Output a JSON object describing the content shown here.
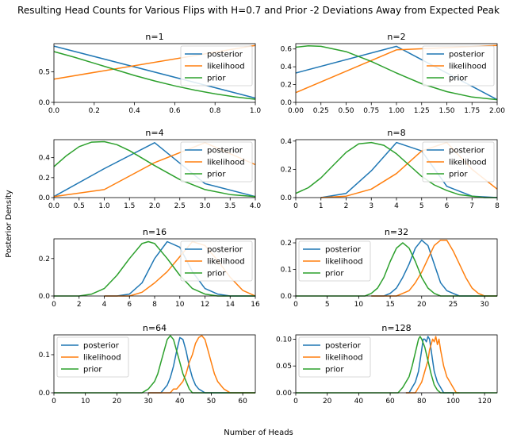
{
  "figure": {
    "suptitle": "Resulting Head Counts for Various Flips with H=0.7 and Prior -2 Deviations Away from Expected Peak",
    "supxlabel": "Number of Heads",
    "supylabel": "Posterior Density"
  },
  "colors": {
    "posterior": "#1f77b4",
    "likelihood": "#ff7f0e",
    "prior": "#2ca02c"
  },
  "chart_data": [
    {
      "type": "line",
      "title": "n=1",
      "xlim": [
        0,
        1
      ],
      "ylim": [
        0,
        0.96
      ],
      "xticks": [
        "0.0",
        "0.2",
        "0.4",
        "0.6",
        "0.8",
        "1.0"
      ],
      "yticks": [
        "0.0",
        "0.5"
      ],
      "xtick_values": [
        0,
        0.2,
        0.4,
        0.6,
        0.8,
        1.0
      ],
      "ytick_values": [
        0,
        0.5
      ],
      "legend": "upper right",
      "series": [
        {
          "name": "posterior",
          "x": [
            0,
            1
          ],
          "y": [
            0.92,
            0.07
          ]
        },
        {
          "name": "likelihood",
          "x": [
            0,
            1
          ],
          "y": [
            0.38,
            0.93
          ]
        },
        {
          "name": "prior",
          "x": [
            0,
            0.1,
            0.2,
            0.3,
            0.4,
            0.5,
            0.6,
            0.7,
            0.8,
            0.9,
            1.0
          ],
          "y": [
            0.83,
            0.74,
            0.64,
            0.54,
            0.44,
            0.35,
            0.27,
            0.2,
            0.14,
            0.09,
            0.05
          ]
        }
      ]
    },
    {
      "type": "line",
      "title": "n=2",
      "xlim": [
        0,
        2
      ],
      "ylim": [
        0,
        0.66
      ],
      "xticks": [
        "0.00",
        "0.25",
        "0.50",
        "0.75",
        "1.00",
        "1.25",
        "1.50",
        "1.75",
        "2.00"
      ],
      "yticks": [
        "0.0",
        "0.2",
        "0.4",
        "0.6"
      ],
      "xtick_values": [
        0,
        0.25,
        0.5,
        0.75,
        1.0,
        1.25,
        1.5,
        1.75,
        2.0
      ],
      "ytick_values": [
        0,
        0.2,
        0.4,
        0.6
      ],
      "legend": "upper right",
      "series": [
        {
          "name": "posterior",
          "x": [
            0,
            1,
            2
          ],
          "y": [
            0.33,
            0.63,
            0.03
          ]
        },
        {
          "name": "likelihood",
          "x": [
            0,
            1,
            2
          ],
          "y": [
            0.11,
            0.59,
            0.64
          ]
        },
        {
          "name": "prior",
          "x": [
            0,
            0.125,
            0.25,
            0.5,
            0.75,
            1.0,
            1.25,
            1.5,
            1.75,
            2.0
          ],
          "y": [
            0.62,
            0.635,
            0.63,
            0.57,
            0.46,
            0.33,
            0.21,
            0.12,
            0.06,
            0.03
          ]
        }
      ]
    },
    {
      "type": "line",
      "title": "n=4",
      "xlim": [
        0,
        4
      ],
      "ylim": [
        0,
        0.58
      ],
      "xticks": [
        "0.0",
        "0.5",
        "1.0",
        "1.5",
        "2.0",
        "2.5",
        "3.0",
        "3.5",
        "4.0"
      ],
      "yticks": [
        "0.0",
        "0.2",
        "0.4"
      ],
      "xtick_values": [
        0,
        0.5,
        1,
        1.5,
        2,
        2.5,
        3,
        3.5,
        4
      ],
      "ytick_values": [
        0,
        0.2,
        0.4
      ],
      "legend": "upper right",
      "series": [
        {
          "name": "posterior",
          "x": [
            0,
            1,
            2,
            3,
            4
          ],
          "y": [
            0.01,
            0.29,
            0.55,
            0.14,
            0.01
          ]
        },
        {
          "name": "likelihood",
          "x": [
            0,
            1,
            2,
            3,
            4
          ],
          "y": [
            0.01,
            0.08,
            0.35,
            0.55,
            0.33
          ]
        },
        {
          "name": "prior",
          "x": [
            0,
            0.25,
            0.5,
            0.75,
            1.0,
            1.25,
            1.5,
            2.0,
            2.5,
            3.0,
            3.5,
            4.0
          ],
          "y": [
            0.31,
            0.42,
            0.51,
            0.555,
            0.56,
            0.53,
            0.47,
            0.32,
            0.18,
            0.08,
            0.03,
            0.01
          ]
        }
      ]
    },
    {
      "type": "line",
      "title": "n=8",
      "xlim": [
        0,
        8
      ],
      "ylim": [
        0,
        0.41
      ],
      "xticks": [
        "0",
        "1",
        "2",
        "3",
        "4",
        "5",
        "6",
        "7",
        "8"
      ],
      "yticks": [
        "0.0",
        "0.2",
        "0.4"
      ],
      "xtick_values": [
        0,
        1,
        2,
        3,
        4,
        5,
        6,
        7,
        8
      ],
      "ytick_values": [
        0,
        0.2,
        0.4
      ],
      "legend": "upper right",
      "series": [
        {
          "name": "posterior",
          "x": [
            1,
            2,
            3,
            4,
            5,
            6,
            7,
            8
          ],
          "y": [
            0.0,
            0.03,
            0.19,
            0.39,
            0.33,
            0.08,
            0.01,
            0.0
          ]
        },
        {
          "name": "likelihood",
          "x": [
            1,
            2,
            3,
            4,
            5,
            6,
            7,
            8
          ],
          "y": [
            0.0,
            0.01,
            0.06,
            0.17,
            0.33,
            0.39,
            0.2,
            0.06
          ]
        },
        {
          "name": "prior",
          "x": [
            0,
            0.5,
            1,
            1.5,
            2,
            2.5,
            3,
            3.5,
            4,
            4.5,
            5,
            5.5,
            6,
            6.5,
            7,
            7.5,
            8
          ],
          "y": [
            0.03,
            0.07,
            0.14,
            0.23,
            0.32,
            0.38,
            0.39,
            0.37,
            0.31,
            0.23,
            0.15,
            0.09,
            0.05,
            0.02,
            0.01,
            0.0,
            0.0
          ]
        }
      ]
    },
    {
      "type": "line",
      "title": "n=16",
      "xlim": [
        0,
        16
      ],
      "ylim": [
        0,
        0.305
      ],
      "xticks": [
        "0",
        "2",
        "4",
        "6",
        "8",
        "10",
        "12",
        "14",
        "16"
      ],
      "yticks": [
        "0.0",
        "0.2"
      ],
      "xtick_values": [
        0,
        2,
        4,
        6,
        8,
        10,
        12,
        14,
        16
      ],
      "ytick_values": [
        0,
        0.2
      ],
      "legend": "upper right",
      "series": [
        {
          "name": "posterior",
          "x": [
            4,
            5,
            6,
            7,
            8,
            9,
            10,
            11,
            12,
            13,
            14,
            15,
            16
          ],
          "y": [
            0.0,
            0.0,
            0.01,
            0.07,
            0.2,
            0.29,
            0.26,
            0.13,
            0.04,
            0.01,
            0.0,
            0.0,
            0.0
          ]
        },
        {
          "name": "likelihood",
          "x": [
            4,
            5,
            6,
            7,
            8,
            9,
            10,
            11,
            12,
            13,
            14,
            15,
            16
          ],
          "y": [
            0.0,
            0.0,
            0.0,
            0.02,
            0.07,
            0.13,
            0.21,
            0.29,
            0.27,
            0.19,
            0.1,
            0.03,
            0.0
          ]
        },
        {
          "name": "prior",
          "x": [
            0,
            1,
            2,
            3,
            4,
            5,
            6,
            7,
            7.5,
            8,
            9,
            10,
            11,
            12,
            13,
            14,
            15,
            16
          ],
          "y": [
            0.0,
            0.0,
            0.0,
            0.01,
            0.04,
            0.11,
            0.2,
            0.28,
            0.29,
            0.28,
            0.2,
            0.11,
            0.04,
            0.01,
            0.0,
            0.0,
            0.0,
            0.0
          ]
        }
      ]
    },
    {
      "type": "line",
      "title": "n=32",
      "xlim": [
        0,
        32
      ],
      "ylim": [
        0,
        0.215
      ],
      "xticks": [
        "0",
        "5",
        "10",
        "15",
        "20",
        "25",
        "30"
      ],
      "yticks": [
        "0.0",
        "0.1",
        "0.2"
      ],
      "xtick_values": [
        0,
        5,
        10,
        15,
        20,
        25,
        30
      ],
      "ytick_values": [
        0,
        0.1,
        0.2
      ],
      "legend": "upper left",
      "series": [
        {
          "name": "posterior",
          "x": [
            12,
            13,
            14,
            15,
            16,
            17,
            18,
            19,
            20,
            21,
            22,
            23,
            24,
            25,
            26,
            27,
            28,
            29,
            30,
            31,
            32
          ],
          "y": [
            0.0,
            0.0,
            0.0,
            0.01,
            0.03,
            0.07,
            0.12,
            0.18,
            0.21,
            0.19,
            0.12,
            0.05,
            0.02,
            0.01,
            0.0,
            0.0,
            0.0,
            0.0,
            0.0,
            0.0,
            0.0
          ]
        },
        {
          "name": "likelihood",
          "x": [
            12,
            13,
            14,
            15,
            16,
            17,
            18,
            19,
            20,
            21,
            22,
            23,
            24,
            25,
            26,
            27,
            28,
            29,
            30,
            31,
            32
          ],
          "y": [
            0.0,
            0.0,
            0.0,
            0.0,
            0.0,
            0.01,
            0.02,
            0.05,
            0.09,
            0.14,
            0.19,
            0.21,
            0.21,
            0.17,
            0.12,
            0.07,
            0.03,
            0.01,
            0.0,
            0.0,
            0.0
          ]
        },
        {
          "name": "prior",
          "x": [
            0,
            8,
            10,
            11,
            12,
            13,
            14,
            15,
            16,
            17,
            18,
            19,
            20,
            21,
            22,
            23,
            24,
            26,
            32
          ],
          "y": [
            0.0,
            0.0,
            0.0,
            0.0,
            0.01,
            0.03,
            0.07,
            0.13,
            0.18,
            0.2,
            0.18,
            0.13,
            0.07,
            0.03,
            0.01,
            0.0,
            0.0,
            0.0,
            0.0
          ]
        }
      ]
    },
    {
      "type": "line",
      "title": "n=64",
      "xlim": [
        0,
        64
      ],
      "ylim": [
        0,
        0.152
      ],
      "xticks": [
        "0",
        "10",
        "20",
        "30",
        "40",
        "50",
        "60"
      ],
      "yticks": [
        "0.0",
        "0.1"
      ],
      "xtick_values": [
        0,
        10,
        20,
        30,
        40,
        50,
        60
      ],
      "ytick_values": [
        0,
        0.1
      ],
      "legend": "upper left",
      "series": [
        {
          "name": "posterior",
          "x": [
            30,
            32,
            34,
            35,
            36,
            37,
            38,
            39,
            40,
            41,
            42,
            43,
            44,
            45,
            46,
            48,
            50,
            52,
            54,
            56,
            58,
            60,
            62,
            64
          ],
          "y": [
            0.0,
            0.0,
            0.0,
            0.01,
            0.02,
            0.04,
            0.07,
            0.11,
            0.145,
            0.14,
            0.11,
            0.07,
            0.04,
            0.02,
            0.01,
            0.0,
            0.0,
            0.0,
            0.0,
            0.0,
            0.0,
            0.0,
            0.0,
            0.0
          ]
        },
        {
          "name": "likelihood",
          "x": [
            30,
            33,
            35,
            37,
            38,
            39,
            40,
            41,
            42,
            43,
            44,
            45,
            46,
            47,
            48,
            49,
            50,
            51,
            52,
            53,
            54,
            56,
            58,
            60,
            62,
            64
          ],
          "y": [
            0.0,
            0.0,
            0.0,
            0.0,
            0.01,
            0.01,
            0.02,
            0.03,
            0.05,
            0.08,
            0.1,
            0.13,
            0.145,
            0.15,
            0.14,
            0.11,
            0.08,
            0.05,
            0.03,
            0.02,
            0.01,
            0.0,
            0.0,
            0.0,
            0.0,
            0.0
          ]
        },
        {
          "name": "prior",
          "x": [
            0,
            20,
            26,
            28,
            30,
            32,
            33,
            34,
            35,
            36,
            37,
            38,
            39,
            40,
            41,
            42,
            43,
            44,
            46,
            48,
            52,
            64
          ],
          "y": [
            0.0,
            0.0,
            0.0,
            0.0,
            0.01,
            0.03,
            0.05,
            0.08,
            0.11,
            0.14,
            0.15,
            0.14,
            0.11,
            0.08,
            0.05,
            0.03,
            0.01,
            0.0,
            0.0,
            0.0,
            0.0,
            0.0
          ]
        }
      ]
    },
    {
      "type": "line",
      "title": "n=128",
      "xlim": [
        0,
        128
      ],
      "ylim": [
        0,
        0.108
      ],
      "xticks": [
        "0",
        "20",
        "40",
        "60",
        "80",
        "100",
        "120"
      ],
      "yticks": [
        "0.00",
        "0.05",
        "0.10"
      ],
      "xtick_values": [
        0,
        20,
        40,
        60,
        80,
        100,
        120
      ],
      "ytick_values": [
        0,
        0.05,
        0.1
      ],
      "legend": "upper left",
      "series": [
        {
          "name": "posterior",
          "x": [
            70,
            72,
            74,
            76,
            78,
            80,
            81,
            82,
            83,
            84,
            85,
            86,
            87,
            88,
            90,
            92,
            94,
            96,
            98,
            100
          ],
          "y": [
            0.0,
            0.0,
            0.01,
            0.02,
            0.04,
            0.08,
            0.1,
            0.1,
            0.095,
            0.105,
            0.1,
            0.08,
            0.06,
            0.04,
            0.02,
            0.01,
            0.0,
            0.0,
            0.0,
            0.0
          ]
        },
        {
          "name": "likelihood",
          "x": [
            70,
            74,
            76,
            78,
            80,
            82,
            84,
            85,
            86,
            87,
            88,
            89,
            90,
            91,
            92,
            94,
            96,
            98,
            100,
            102,
            104
          ],
          "y": [
            0.0,
            0.0,
            0.0,
            0.01,
            0.02,
            0.04,
            0.06,
            0.08,
            0.09,
            0.1,
            0.095,
            0.105,
            0.09,
            0.1,
            0.08,
            0.05,
            0.03,
            0.02,
            0.01,
            0.0,
            0.0
          ]
        },
        {
          "name": "prior",
          "x": [
            0,
            40,
            60,
            65,
            68,
            70,
            72,
            74,
            76,
            78,
            79,
            80,
            82,
            84,
            86,
            88,
            90,
            92,
            96,
            100,
            128
          ],
          "y": [
            0.0,
            0.0,
            0.0,
            0.0,
            0.01,
            0.02,
            0.03,
            0.05,
            0.075,
            0.1,
            0.105,
            0.1,
            0.085,
            0.06,
            0.035,
            0.015,
            0.005,
            0.0,
            0.0,
            0.0,
            0.0
          ]
        }
      ]
    }
  ]
}
